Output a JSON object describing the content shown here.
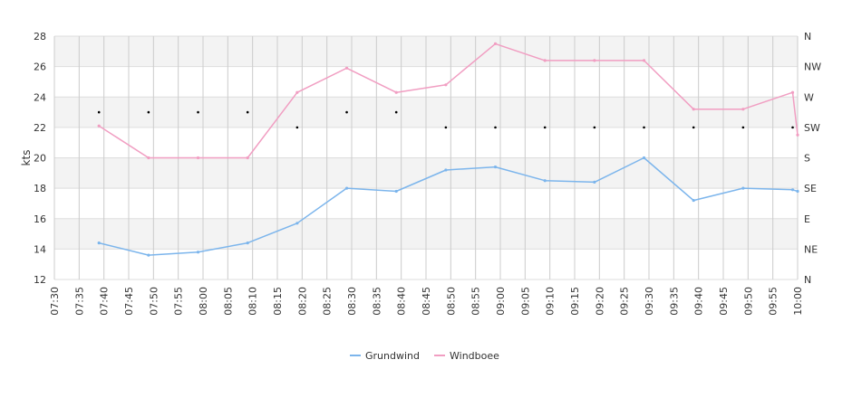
{
  "chart_data": {
    "type": "line",
    "ylabel": "kts",
    "ylim": [
      12,
      28
    ],
    "y_ticks": [
      12,
      14,
      16,
      18,
      20,
      22,
      24,
      26,
      28
    ],
    "x_ticks": [
      "07:30",
      "07:35",
      "07:40",
      "07:45",
      "07:50",
      "07:55",
      "08:00",
      "08:05",
      "08:10",
      "08:15",
      "08:20",
      "08:25",
      "08:30",
      "08:35",
      "08:40",
      "08:45",
      "08:50",
      "08:55",
      "09:00",
      "09:05",
      "09:10",
      "09:15",
      "09:20",
      "09:25",
      "09:30",
      "09:35",
      "09:40",
      "09:45",
      "09:50",
      "09:55",
      "10:00"
    ],
    "xlim": [
      "07:30",
      "10:00"
    ],
    "y2_ticks": [
      "N",
      "NE",
      "E",
      "SE",
      "S",
      "SW",
      "W",
      "NW",
      "N"
    ],
    "grid": true,
    "legend_position": "bottom",
    "series": [
      {
        "name": "Grundwind",
        "color": "#7cb5ec",
        "x": [
          "07:39",
          "07:49",
          "07:59",
          "08:09",
          "08:19",
          "08:29",
          "08:39",
          "08:49",
          "08:59",
          "09:09",
          "09:19",
          "09:29",
          "09:39",
          "09:49",
          "09:59",
          "10:00"
        ],
        "values": [
          14.4,
          13.6,
          13.8,
          14.4,
          15.7,
          18.0,
          17.8,
          19.2,
          19.4,
          18.5,
          18.4,
          20.0,
          17.2,
          18.0,
          17.9,
          17.8
        ]
      },
      {
        "name": "Windboee",
        "color": "#f19ec2",
        "x": [
          "07:39",
          "07:49",
          "07:59",
          "08:09",
          "08:19",
          "08:29",
          "08:39",
          "08:49",
          "08:59",
          "09:09",
          "09:19",
          "09:29",
          "09:39",
          "09:49",
          "09:59",
          "10:00"
        ],
        "values": [
          22.1,
          20.0,
          20.0,
          20.0,
          24.3,
          25.9,
          24.3,
          24.8,
          27.5,
          26.4,
          26.4,
          26.4,
          23.2,
          23.2,
          24.3,
          21.5
        ]
      }
    ],
    "direction_markers": {
      "x": [
        "07:39",
        "07:49",
        "07:59",
        "08:09",
        "08:19",
        "08:29",
        "08:39",
        "08:49",
        "08:59",
        "09:09",
        "09:19",
        "09:29",
        "09:39",
        "09:49",
        "09:59"
      ],
      "direction": [
        "WSW",
        "WSW",
        "WSW",
        "WSW",
        "SW",
        "WSW",
        "WSW",
        "SW",
        "SW",
        "SW",
        "SW",
        "SW",
        "SW",
        "SW",
        "SW"
      ]
    }
  }
}
